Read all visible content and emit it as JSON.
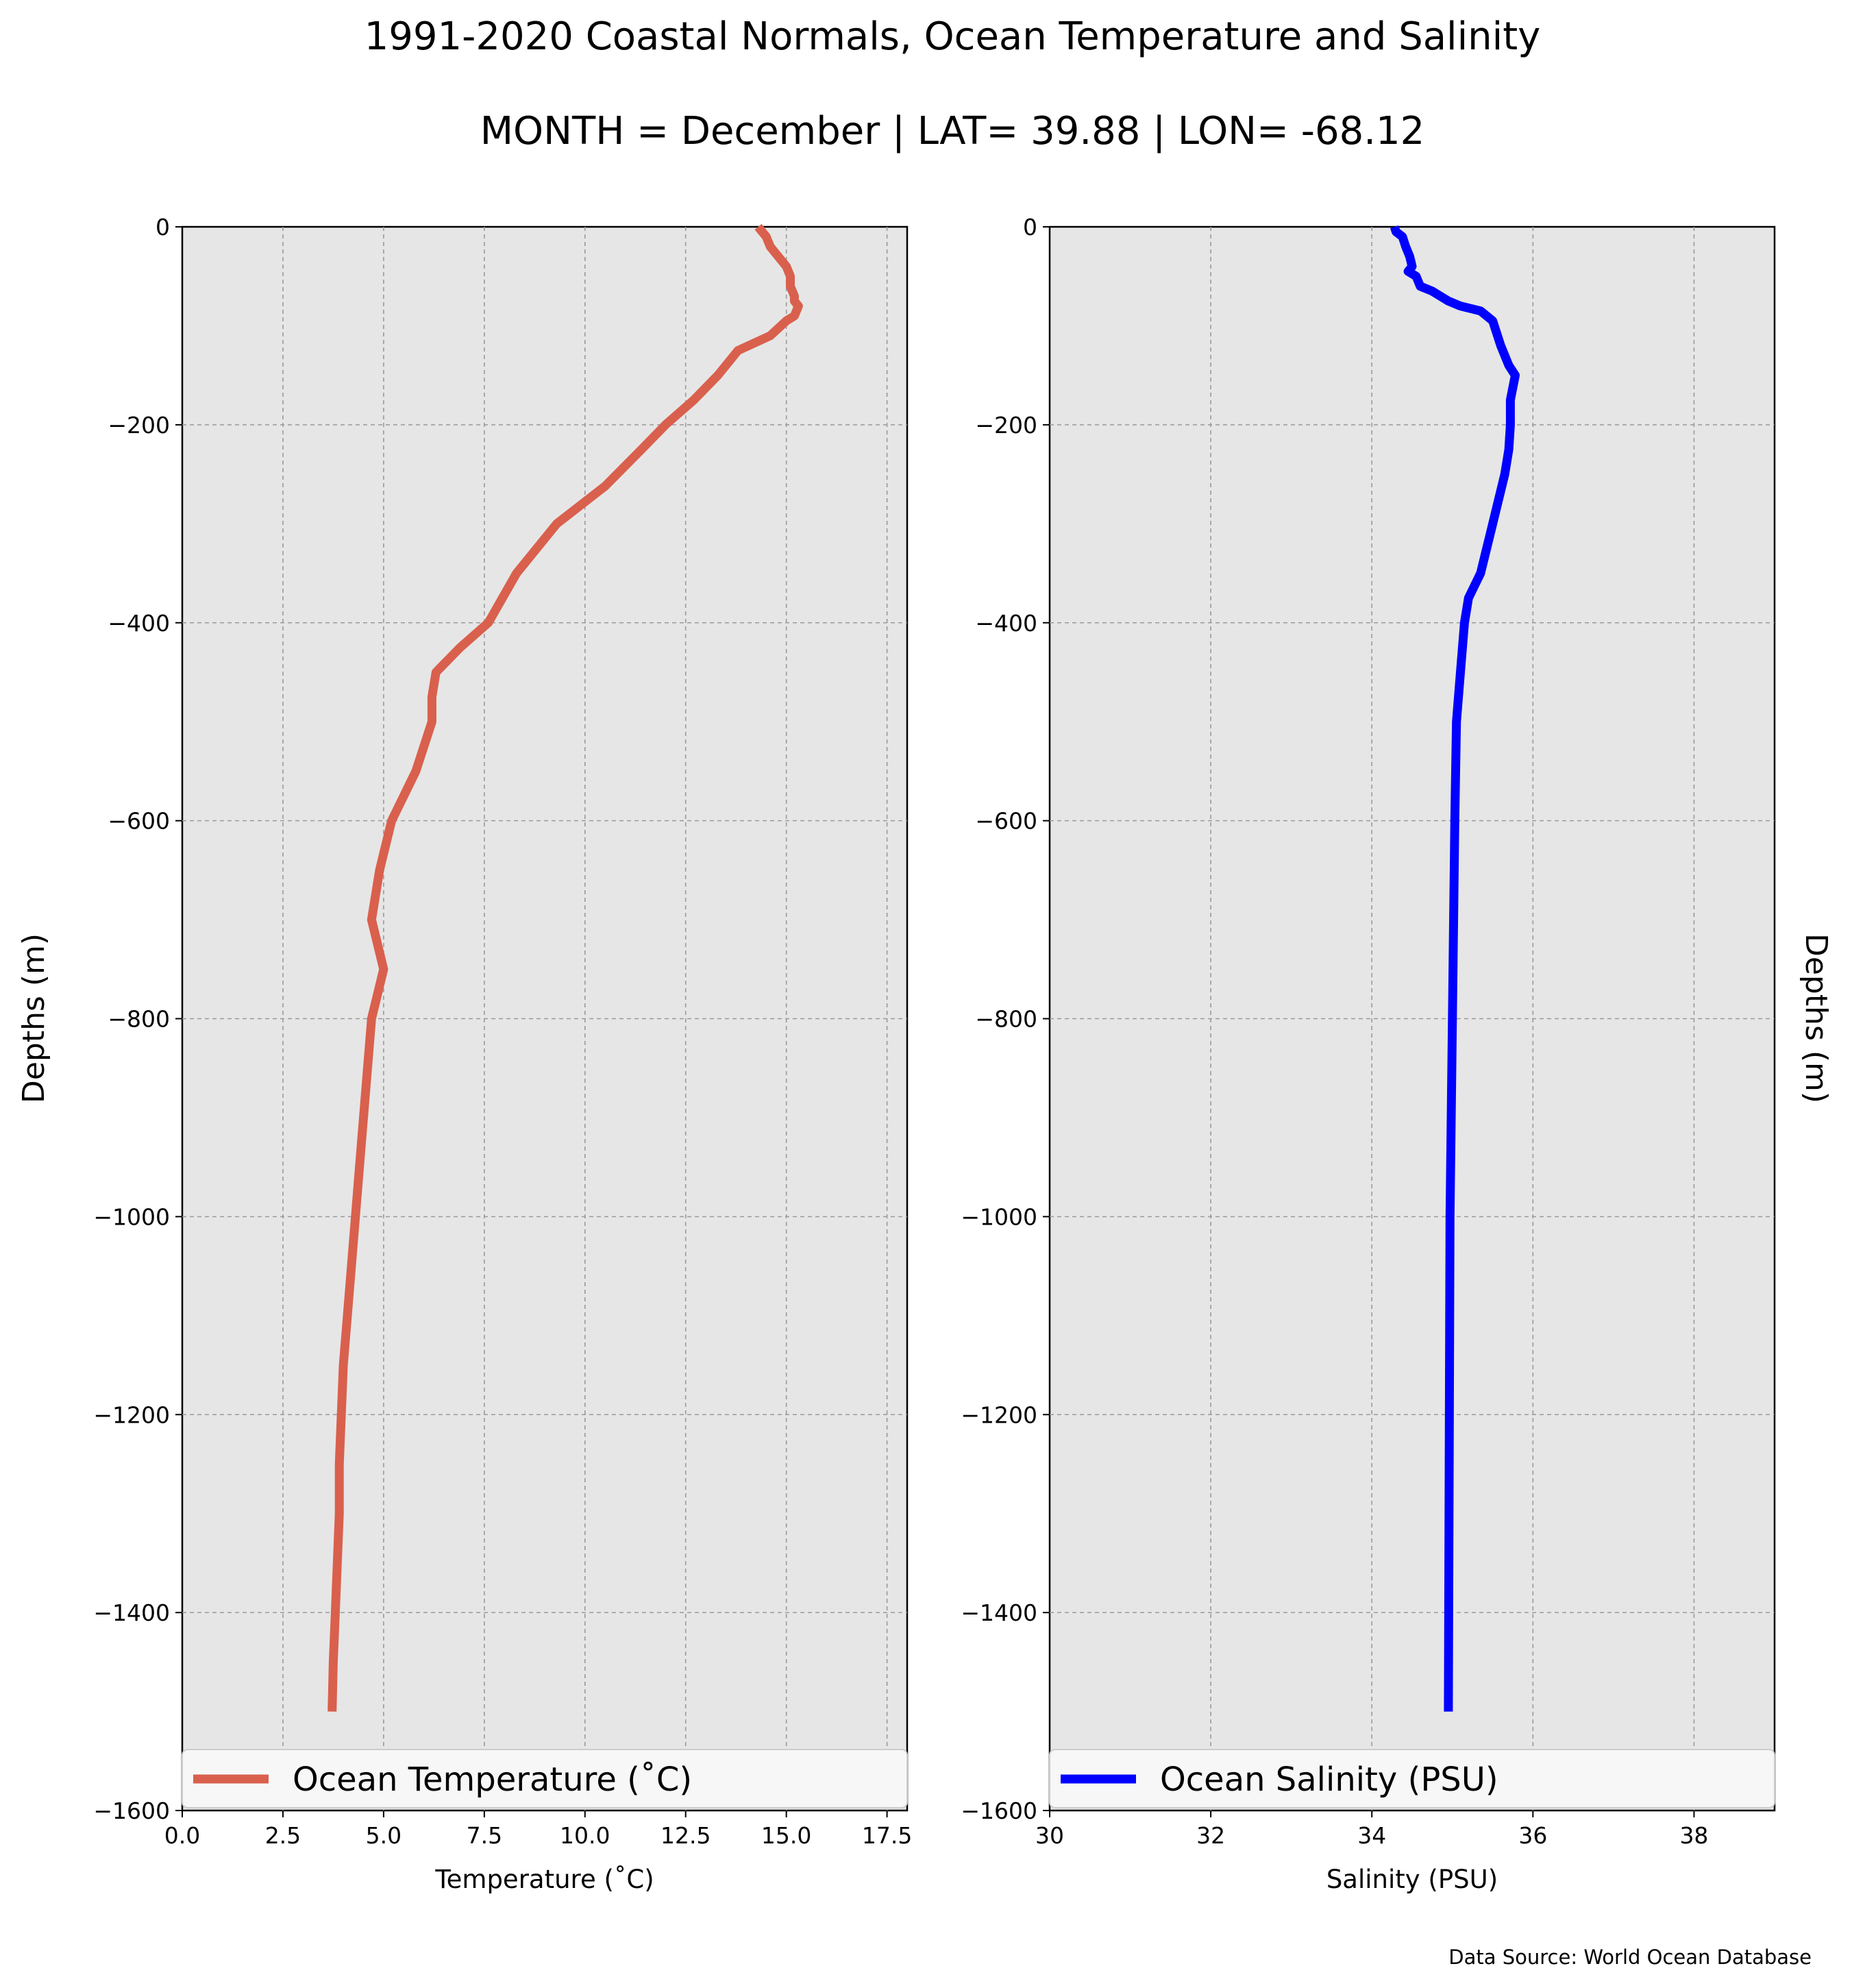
{
  "figure": {
    "title": "1991-2020 Coastal Normals, Ocean Temperature and Salinity",
    "subtitle": "MONTH = December | LAT= 39.88 | LON= -68.12",
    "source": "Data Source: World Ocean Database",
    "background": "#e6e6e6",
    "grid_color": "#9a9a9a"
  },
  "chart_data": [
    {
      "type": "line",
      "xlabel": "Temperature (˚C)",
      "ylabel": "Depths (m)",
      "xlim": [
        0,
        18
      ],
      "ylim": [
        -1600,
        0
      ],
      "xticks": [
        "0.0",
        "2.5",
        "5.0",
        "7.5",
        "10.0",
        "12.5",
        "15.0",
        "17.5"
      ],
      "xtick_values": [
        0,
        2.5,
        5,
        7.5,
        10,
        12.5,
        15,
        17.5
      ],
      "yticks": [
        "0",
        "−200",
        "−400",
        "−600",
        "−800",
        "−1000",
        "−1200",
        "−1400",
        "−1600"
      ],
      "ytick_values": [
        0,
        -200,
        -400,
        -600,
        -800,
        -1000,
        -1200,
        -1400,
        -1600
      ],
      "grid": true,
      "legend_position": "lower-center",
      "series": [
        {
          "name": "Ocean Temperature (˚C)",
          "color": "#d9604d",
          "x": [
            14.3,
            14.4,
            14.5,
            14.6,
            14.8,
            15.0,
            15.1,
            15.1,
            15.2,
            15.2,
            15.3,
            15.2,
            15.0,
            14.6,
            13.8,
            13.3,
            12.7,
            12.0,
            11.4,
            10.5,
            9.3,
            8.3,
            7.6,
            6.9,
            6.3,
            6.2,
            6.2,
            5.8,
            5.2,
            4.9,
            4.7,
            5.0,
            4.7,
            4.6,
            4.4,
            4.2,
            4.0,
            3.9,
            3.9,
            3.8,
            3.75,
            3.72
          ],
          "y": [
            0,
            -5,
            -10,
            -20,
            -30,
            -40,
            -50,
            -60,
            -70,
            -75,
            -80,
            -90,
            -95,
            -110,
            -125,
            -150,
            -175,
            -200,
            -225,
            -262,
            -300,
            -350,
            -400,
            -425,
            -450,
            -475,
            -500,
            -550,
            -600,
            -650,
            -700,
            -750,
            -800,
            -850,
            -950,
            -1050,
            -1150,
            -1250,
            -1300,
            -1400,
            -1450,
            -1500
          ]
        }
      ]
    },
    {
      "type": "line",
      "xlabel": "Salinity (PSU)",
      "ylabel": "Depths (m)",
      "xlim": [
        30,
        39
      ],
      "ylim": [
        -1600,
        0
      ],
      "xticks": [
        "30",
        "32",
        "34",
        "36",
        "38"
      ],
      "xtick_values": [
        30,
        32,
        34,
        36,
        38
      ],
      "yticks": [
        "0",
        "−200",
        "−400",
        "−600",
        "−800",
        "−1000",
        "−1200",
        "−1400",
        "−1600"
      ],
      "ytick_values": [
        0,
        -200,
        -400,
        -600,
        -800,
        -1000,
        -1200,
        -1400,
        -1600
      ],
      "grid": true,
      "legend_position": "lower-center",
      "series": [
        {
          "name": "Ocean Salinity (PSU)",
          "color": "#0000ff",
          "x": [
            34.28,
            34.3,
            34.38,
            34.42,
            34.47,
            34.5,
            34.45,
            34.55,
            34.6,
            34.75,
            34.95,
            35.1,
            35.35,
            35.5,
            35.6,
            35.7,
            35.78,
            35.72,
            35.72,
            35.7,
            35.65,
            35.5,
            35.35,
            35.2,
            35.15,
            35.1,
            35.05,
            35.03,
            35.0,
            34.97,
            34.95
          ],
          "y": [
            0,
            -5,
            -10,
            -20,
            -30,
            -40,
            -45,
            -50,
            -60,
            -65,
            -75,
            -80,
            -85,
            -95,
            -120,
            -140,
            -150,
            -175,
            -200,
            -225,
            -250,
            -300,
            -350,
            -375,
            -400,
            -450,
            -500,
            -600,
            -800,
            -1000,
            -1500
          ]
        }
      ]
    }
  ]
}
